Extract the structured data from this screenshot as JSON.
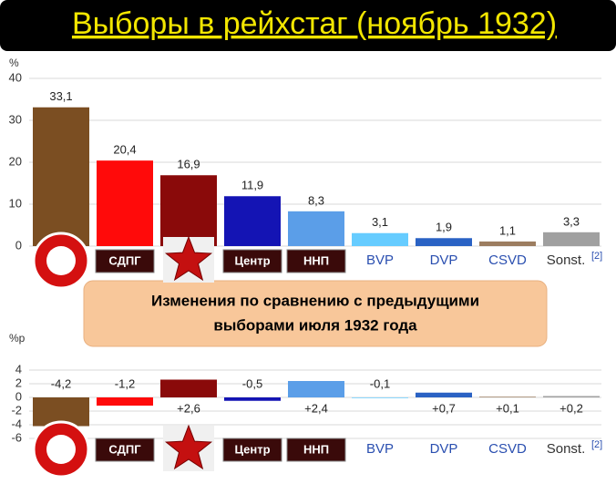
{
  "title": "Выборы в рейхстаг (ноябрь 1932)",
  "note": [
    "Изменения по сравнению с предыдущими",
    "выборами июля 1932 года"
  ],
  "chart_data": [
    {
      "type": "bar",
      "y_label": "%",
      "categories": [
        null,
        "СДПГ",
        null,
        "Центр",
        "ННП",
        "BVP",
        "DVP",
        "CSVD",
        "Sonst."
      ],
      "category_note": "[2]",
      "values": [
        33.1,
        20.4,
        16.9,
        11.9,
        8.3,
        3.1,
        1.9,
        1.1,
        3.3
      ],
      "value_labels": [
        "33,1",
        "20,4",
        "16,9",
        "11,9",
        "8,3",
        "3,1",
        "1,9",
        "1,1",
        "3,3"
      ],
      "colors": [
        "#7b4e22",
        "#ff0a0a",
        "#8a0a0a",
        "#1414b4",
        "#5b9ee8",
        "#66ccff",
        "#2a62c4",
        "#9c7d60",
        "#a0a0a0"
      ],
      "ylim": [
        0,
        40
      ],
      "yticks": [
        0,
        10,
        20,
        30,
        40
      ],
      "grid": true
    },
    {
      "type": "bar",
      "y_label": "%p",
      "categories": [
        null,
        "СДПГ",
        null,
        "Центр",
        "ННП",
        "BVP",
        "DVP",
        "CSVD",
        "Sonst."
      ],
      "category_note": "[2]",
      "values": [
        -4.2,
        -1.2,
        2.6,
        -0.5,
        2.4,
        -0.1,
        0.7,
        0.1,
        0.2
      ],
      "value_labels": [
        "-4,2",
        "-1,2",
        "+2,6",
        "-0,5",
        "+2,4",
        "-0,1",
        "+0,7",
        "+0,1",
        "+0,2"
      ],
      "colors": [
        "#7b4e22",
        "#ff0a0a",
        "#8a0a0a",
        "#1414b4",
        "#5b9ee8",
        "#66ccff",
        "#2a62c4",
        "#9c7d60",
        "#a0a0a0"
      ],
      "ylim": [
        -6,
        4
      ],
      "yticks": [
        -6,
        -4,
        -2,
        0,
        2,
        4
      ],
      "grid": true
    }
  ]
}
